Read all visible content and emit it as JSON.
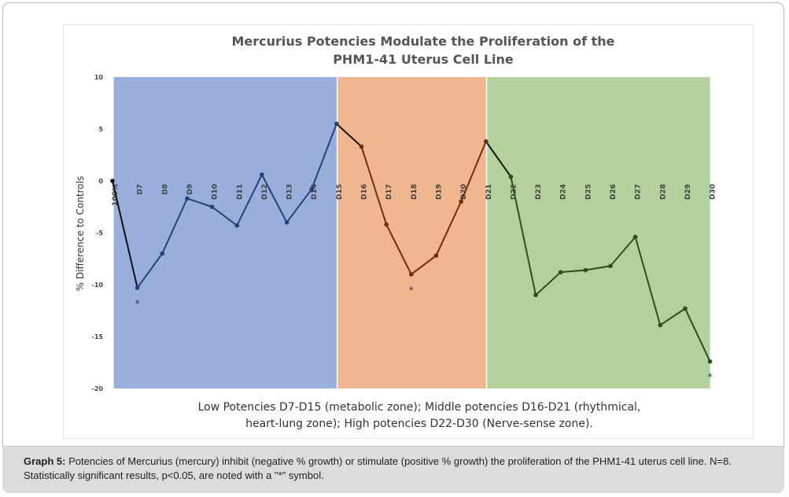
{
  "caption": {
    "label": "Graph 5:",
    "text": "Potencies of Mercurius (mercury) inhibit (negative % growth) or stimulate (positive % growth) the proliferation of the PHM1-41 uterus cell line. N=8. Statistically significant results, p<0.05, are noted with a \"*\" symbol."
  },
  "chart_data": {
    "type": "line",
    "title_lines": [
      "Mercurius Potencies Modulate the Proliferation of the",
      "PHM1-41 Uterus Cell Line"
    ],
    "ylabel": "% Difference to Controls",
    "ylim": [
      -20,
      10
    ],
    "yticks": [
      "10",
      "5",
      "0",
      "-5",
      "-10",
      "-15",
      "-20"
    ],
    "categories": [
      "100%",
      "D7",
      "D8",
      "D9",
      "D10",
      "D11",
      "D12",
      "D13",
      "D14",
      "D15",
      "D16",
      "D17",
      "D18",
      "D19",
      "D20",
      "D21",
      "D22",
      "D23",
      "D24",
      "D25",
      "D26",
      "D27",
      "D28",
      "D29",
      "D30"
    ],
    "values": [
      0,
      -10.3,
      -7.0,
      -1.7,
      -2.5,
      -4.3,
      0.6,
      -4.0,
      -0.8,
      5.5,
      3.3,
      -4.2,
      -9.0,
      -7.2,
      -2.0,
      3.8,
      0.4,
      -11.0,
      -8.8,
      -8.6,
      -8.2,
      -5.4,
      -13.9,
      -12.3,
      -17.4
    ],
    "significant": [
      "D7",
      "D18",
      "D30"
    ],
    "significance_mark": "*",
    "zones": [
      {
        "name": "Low Potencies D7-D15",
        "from": "D7",
        "to": "D15",
        "fill": "#9aaedb",
        "line_color": "#24407c"
      },
      {
        "name": "Middle potencies D16-D21",
        "from": "D16",
        "to": "D21",
        "fill": "#efb68f",
        "line_color": "#6b2e10"
      },
      {
        "name": "High potencies D22-D30",
        "from": "D22",
        "to": "D30",
        "fill": "#b3d19c",
        "line_color": "#2e4d1d"
      }
    ],
    "outside_line_color": "#111111",
    "note_lines": [
      "Low Potencies D7-D15 (metabolic zone); Middle potencies D16-D21 (rhythmical,",
      "heart-lung zone); High potencies D22-D30 (Nerve-sense zone)."
    ]
  }
}
